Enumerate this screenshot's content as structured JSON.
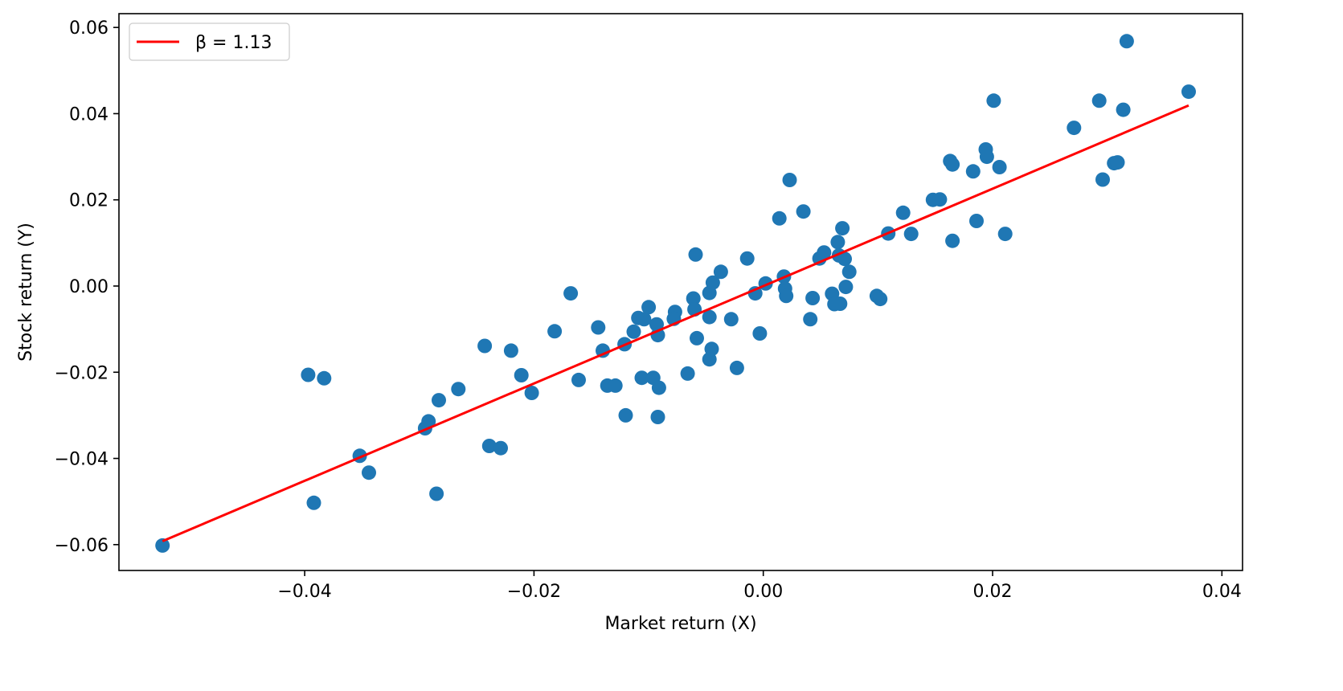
{
  "chart_data": {
    "type": "scatter",
    "xlabel": "Market return (X)",
    "ylabel": "Stock return (Y)",
    "xlim": [
      -0.0562,
      0.0418
    ],
    "ylim": [
      -0.066,
      0.0632
    ],
    "xticks": [
      -0.04,
      -0.02,
      0.0,
      0.02,
      0.04
    ],
    "xtick_labels": [
      "−0.04",
      "−0.02",
      "0.00",
      "0.02",
      "0.04"
    ],
    "yticks": [
      -0.06,
      -0.04,
      -0.02,
      0.0,
      0.02,
      0.04,
      0.06
    ],
    "ytick_labels": [
      "−0.06",
      "−0.04",
      "−0.02",
      "0.00",
      "0.02",
      "0.04",
      "0.06"
    ],
    "grid": false,
    "legend_position": "top-left",
    "colors": {
      "points": "#1f77b4",
      "fit_line": "#ff0000"
    },
    "series": [
      {
        "kind": "scatter",
        "points": [
          [
            -0.0524,
            -0.0602
          ],
          [
            -0.0397,
            -0.0206
          ],
          [
            -0.0383,
            -0.0214
          ],
          [
            -0.0392,
            -0.0503
          ],
          [
            -0.0352,
            -0.0394
          ],
          [
            -0.0344,
            -0.0433
          ],
          [
            -0.0295,
            -0.033
          ],
          [
            -0.0292,
            -0.0314
          ],
          [
            -0.0283,
            -0.0265
          ],
          [
            -0.0285,
            -0.0482
          ],
          [
            -0.0266,
            -0.0239
          ],
          [
            -0.0243,
            -0.0139
          ],
          [
            -0.0239,
            -0.0371
          ],
          [
            -0.0229,
            -0.0376
          ],
          [
            -0.022,
            -0.015
          ],
          [
            -0.0211,
            -0.0207
          ],
          [
            -0.0202,
            -0.0248
          ],
          [
            -0.0182,
            -0.0105
          ],
          [
            -0.0168,
            -0.0017
          ],
          [
            -0.0161,
            -0.0218
          ],
          [
            -0.0144,
            -0.0096
          ],
          [
            -0.014,
            -0.015
          ],
          [
            -0.0136,
            -0.0231
          ],
          [
            -0.0129,
            -0.0231
          ],
          [
            -0.0121,
            -0.0135
          ],
          [
            -0.012,
            -0.03
          ],
          [
            -0.0113,
            -0.0106
          ],
          [
            -0.0109,
            -0.0074
          ],
          [
            -0.0106,
            -0.0213
          ],
          [
            -0.0104,
            -0.0077
          ],
          [
            -0.01,
            -0.0049
          ],
          [
            -0.0096,
            -0.0213
          ],
          [
            -0.0093,
            -0.0089
          ],
          [
            -0.0092,
            -0.0114
          ],
          [
            -0.0091,
            -0.0236
          ],
          [
            -0.0092,
            -0.0304
          ],
          [
            -0.0077,
            -0.006
          ],
          [
            -0.0078,
            -0.0076
          ],
          [
            -0.0066,
            -0.0203
          ],
          [
            -0.0061,
            -0.0029
          ],
          [
            -0.006,
            -0.0054
          ],
          [
            -0.0059,
            0.0073
          ],
          [
            -0.0058,
            -0.0121
          ],
          [
            -0.0047,
            -0.0016
          ],
          [
            -0.0047,
            -0.0072
          ],
          [
            -0.0047,
            -0.017
          ],
          [
            -0.0044,
            0.0008
          ],
          [
            -0.0045,
            -0.0146
          ],
          [
            -0.0037,
            0.0033
          ],
          [
            -0.0028,
            -0.0077
          ],
          [
            -0.0023,
            -0.019
          ],
          [
            -0.0014,
            0.0064
          ],
          [
            -0.0007,
            -0.0017
          ],
          [
            -0.0003,
            -0.011
          ],
          [
            0.0002,
            0.0006
          ],
          [
            0.0014,
            0.0157
          ],
          [
            0.0018,
            0.0022
          ],
          [
            0.0019,
            -0.0006
          ],
          [
            0.002,
            -0.0023
          ],
          [
            0.0023,
            0.0246
          ],
          [
            0.0035,
            0.0173
          ],
          [
            0.0041,
            -0.0077
          ],
          [
            0.0043,
            -0.0028
          ],
          [
            0.0049,
            0.0064
          ],
          [
            0.0053,
            0.0078
          ],
          [
            0.006,
            -0.0018
          ],
          [
            0.0062,
            -0.0042
          ],
          [
            0.0065,
            0.0102
          ],
          [
            0.0066,
            0.0071
          ],
          [
            0.0067,
            -0.0041
          ],
          [
            0.0069,
            0.0134
          ],
          [
            0.0071,
            0.0063
          ],
          [
            0.0072,
            -0.0002
          ],
          [
            0.0075,
            0.0033
          ],
          [
            0.0099,
            -0.0023
          ],
          [
            0.0102,
            -0.003
          ],
          [
            0.0109,
            0.0122
          ],
          [
            0.0122,
            0.017
          ],
          [
            0.0129,
            0.0121
          ],
          [
            0.0148,
            0.02
          ],
          [
            0.0154,
            0.0201
          ],
          [
            0.0163,
            0.029
          ],
          [
            0.0165,
            0.0282
          ],
          [
            0.0165,
            0.0105
          ],
          [
            0.0183,
            0.0266
          ],
          [
            0.0186,
            0.0151
          ],
          [
            0.0194,
            0.0317
          ],
          [
            0.0195,
            0.03
          ],
          [
            0.0201,
            0.043
          ],
          [
            0.0206,
            0.0276
          ],
          [
            0.0211,
            0.0121
          ],
          [
            0.0271,
            0.0367
          ],
          [
            0.0293,
            0.043
          ],
          [
            0.0296,
            0.0247
          ],
          [
            0.0306,
            0.0285
          ],
          [
            0.0309,
            0.0287
          ],
          [
            0.0314,
            0.0409
          ],
          [
            0.0317,
            0.0568
          ],
          [
            0.0371,
            0.0451
          ]
        ]
      },
      {
        "kind": "line",
        "name": "β = 1.13",
        "points": [
          [
            -0.0524,
            -0.0592
          ],
          [
            0.0371,
            0.0419
          ]
        ]
      }
    ]
  }
}
